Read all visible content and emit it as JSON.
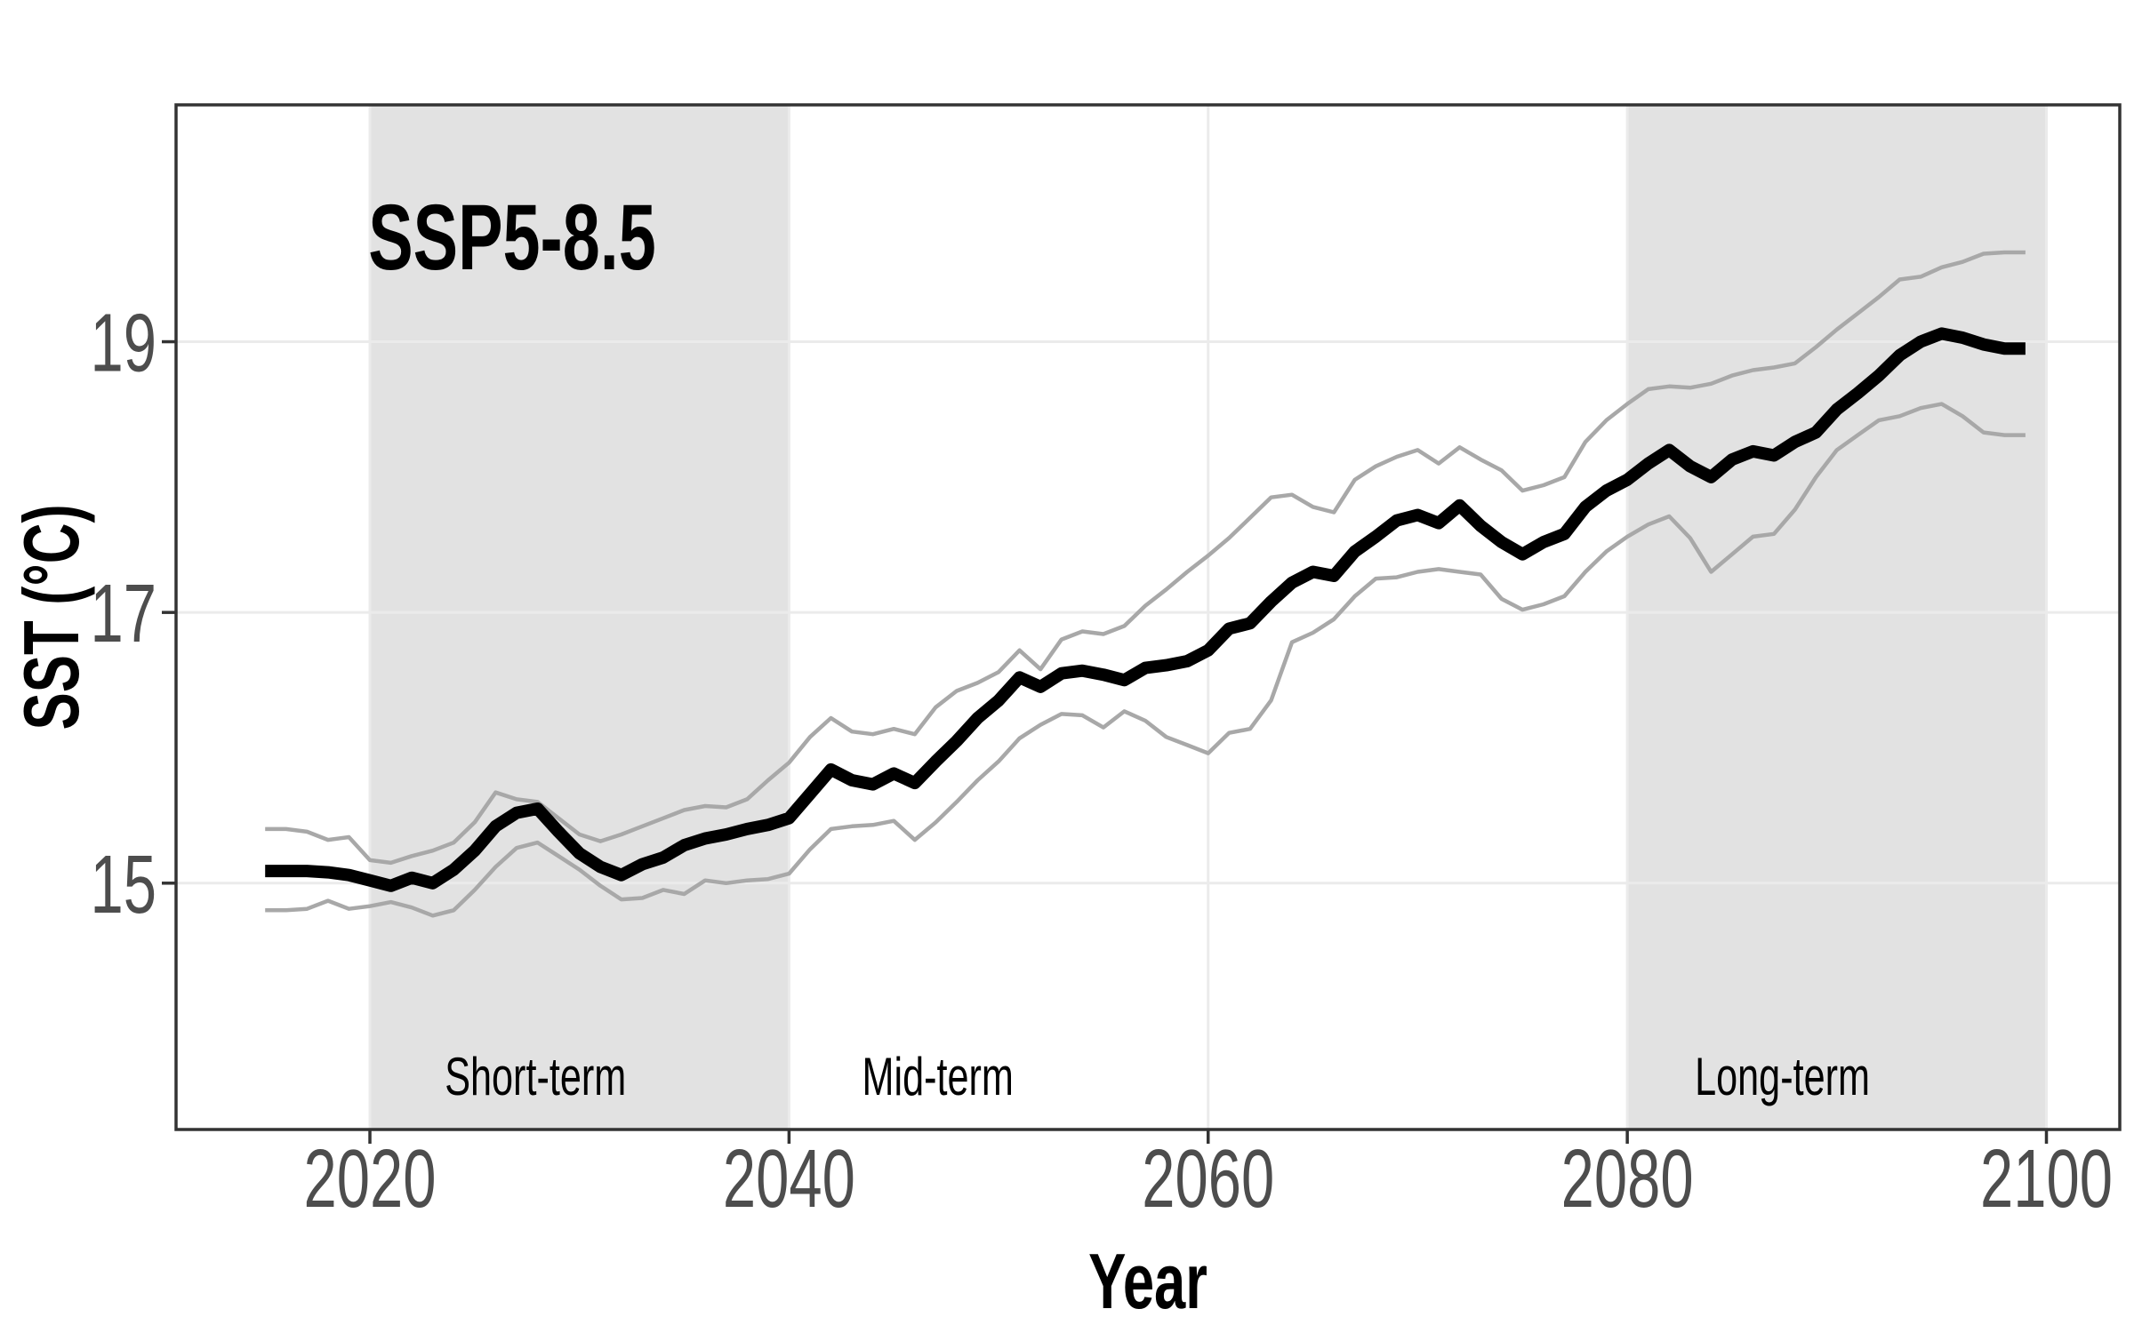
{
  "chart_data": {
    "type": "line",
    "title": "SSP5-8.5",
    "xlabel": "Year",
    "ylabel": "SST (°C)",
    "x_ticks": [
      2020,
      2040,
      2060,
      2080,
      2100
    ],
    "y_ticks": [
      15,
      17,
      19
    ],
    "x_domain": [
      2010.75,
      2103.5
    ],
    "y_domain": [
      13.18,
      20.75
    ],
    "grid": true,
    "legend_position": "none",
    "bands": [
      {
        "name": "short-term-band",
        "from": 2020,
        "to": 2040
      },
      {
        "name": "long-term-band",
        "from": 2080,
        "to": 2100
      }
    ],
    "annotations": [
      {
        "text": "Short-term",
        "year": 2027.9
      },
      {
        "text": "Mid-term",
        "year": 2047.1
      },
      {
        "text": "Long-term",
        "year": 2087.4
      }
    ],
    "colors": {
      "mean_line": "#000000",
      "bound_line": "#a8a8a8",
      "band": "#e2e2e2",
      "grid": "#ebebeb",
      "axis": "#333333",
      "tick_label": "#4d4d4d",
      "text": "#000000",
      "background": "#ffffff"
    },
    "x": [
      2015,
      2016,
      2017,
      2018,
      2019,
      2020,
      2021,
      2022,
      2023,
      2024,
      2025,
      2026,
      2027,
      2028,
      2029,
      2030,
      2031,
      2032,
      2033,
      2034,
      2035,
      2036,
      2037,
      2038,
      2039,
      2040,
      2041,
      2042,
      2043,
      2044,
      2045,
      2046,
      2047,
      2048,
      2049,
      2050,
      2051,
      2052,
      2053,
      2054,
      2055,
      2056,
      2057,
      2058,
      2059,
      2060,
      2061,
      2062,
      2063,
      2064,
      2065,
      2066,
      2067,
      2068,
      2069,
      2070,
      2071,
      2072,
      2073,
      2074,
      2075,
      2076,
      2077,
      2078,
      2079,
      2080,
      2081,
      2082,
      2083,
      2084,
      2085,
      2086,
      2087,
      2088,
      2089,
      2090,
      2091,
      2092,
      2093,
      2094,
      2095,
      2096,
      2097,
      2098,
      2099
    ],
    "series": [
      {
        "name": "ensemble-mean",
        "color": "#000000",
        "width": 14,
        "values": [
          15.09,
          15.09,
          15.09,
          15.08,
          15.06,
          15.02,
          14.98,
          15.04,
          15.0,
          15.1,
          15.24,
          15.42,
          15.52,
          15.55,
          15.38,
          15.22,
          15.12,
          15.06,
          15.14,
          15.19,
          15.28,
          15.33,
          15.36,
          15.4,
          15.43,
          15.48,
          15.66,
          15.84,
          15.76,
          15.73,
          15.81,
          15.74,
          15.9,
          16.05,
          16.22,
          16.35,
          16.52,
          16.45,
          16.55,
          16.57,
          16.54,
          16.5,
          16.59,
          16.61,
          16.64,
          16.72,
          16.88,
          16.92,
          17.08,
          17.22,
          17.3,
          17.27,
          17.45,
          17.56,
          17.68,
          17.72,
          17.66,
          17.79,
          17.64,
          17.52,
          17.43,
          17.52,
          17.58,
          17.78,
          17.9,
          17.98,
          18.1,
          18.2,
          18.08,
          18.0,
          18.13,
          18.19,
          18.16,
          18.26,
          18.33,
          18.5,
          18.62,
          18.75,
          18.9,
          19.0,
          19.06,
          19.03,
          18.98,
          18.95,
          18.95
        ]
      },
      {
        "name": "upper-bound",
        "color": "#a8a8a8",
        "width": 4.5,
        "values": [
          15.4,
          15.4,
          15.38,
          15.32,
          15.34,
          15.17,
          15.15,
          15.2,
          15.24,
          15.3,
          15.45,
          15.67,
          15.62,
          15.6,
          15.48,
          15.36,
          15.31,
          15.36,
          15.42,
          15.48,
          15.54,
          15.57,
          15.56,
          15.62,
          15.76,
          15.89,
          16.08,
          16.22,
          16.12,
          16.1,
          16.14,
          16.1,
          16.3,
          16.42,
          16.48,
          16.56,
          16.72,
          16.58,
          16.8,
          16.86,
          16.84,
          16.9,
          17.05,
          17.17,
          17.3,
          17.42,
          17.55,
          17.7,
          17.85,
          17.87,
          17.78,
          17.74,
          17.98,
          18.08,
          18.15,
          18.2,
          18.1,
          18.22,
          18.13,
          18.05,
          17.9,
          17.94,
          18.0,
          18.26,
          18.42,
          18.54,
          18.65,
          18.67,
          18.66,
          18.69,
          18.75,
          18.79,
          18.81,
          18.84,
          18.96,
          19.09,
          19.21,
          19.33,
          19.46,
          19.48,
          19.55,
          19.59,
          19.65,
          19.66,
          19.66
        ]
      },
      {
        "name": "lower-bound",
        "color": "#a8a8a8",
        "width": 4.5,
        "values": [
          14.8,
          14.8,
          14.81,
          14.87,
          14.81,
          14.83,
          14.86,
          14.82,
          14.76,
          14.8,
          14.95,
          15.12,
          15.26,
          15.3,
          15.2,
          15.1,
          14.98,
          14.88,
          14.89,
          14.95,
          14.92,
          15.02,
          15.0,
          15.02,
          15.03,
          15.07,
          15.25,
          15.4,
          15.42,
          15.43,
          15.46,
          15.32,
          15.45,
          15.6,
          15.76,
          15.9,
          16.07,
          16.17,
          16.25,
          16.24,
          16.15,
          16.27,
          16.2,
          16.08,
          16.02,
          15.96,
          16.11,
          16.14,
          16.35,
          16.78,
          16.85,
          16.95,
          17.12,
          17.25,
          17.26,
          17.3,
          17.32,
          17.3,
          17.28,
          17.1,
          17.02,
          17.06,
          17.12,
          17.3,
          17.45,
          17.56,
          17.65,
          17.71,
          17.55,
          17.3,
          17.43,
          17.56,
          17.58,
          17.76,
          18.0,
          18.2,
          18.31,
          18.42,
          18.45,
          18.51,
          18.54,
          18.45,
          18.33,
          18.31,
          18.31
        ]
      }
    ]
  }
}
